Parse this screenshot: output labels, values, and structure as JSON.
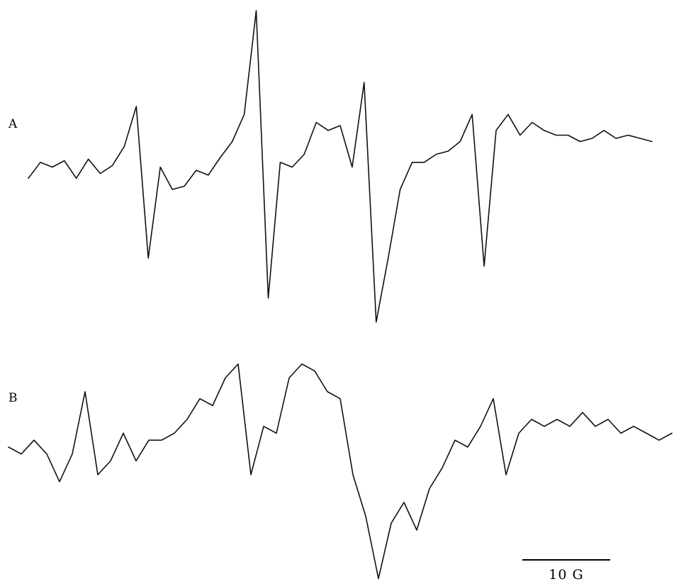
{
  "chart_data": [
    {
      "type": "line",
      "label": "A",
      "x_unit": "G",
      "xlim": [
        -52,
        52
      ],
      "ylim": [
        -1,
        1
      ],
      "series": [
        {
          "x": [
            -52,
            -50,
            -48,
            -46,
            -44,
            -42,
            -40,
            -38,
            -36,
            -34,
            -32,
            -30,
            -28,
            -26,
            -24,
            -22,
            -20,
            -18,
            -16,
            -14,
            -12,
            -10,
            -8,
            -6,
            -4,
            -2,
            0,
            2,
            4,
            6,
            8,
            10,
            12,
            14,
            16,
            18,
            20,
            22,
            24,
            26,
            28,
            30,
            32,
            34,
            36,
            38,
            40,
            42,
            44,
            46,
            48,
            50,
            52
          ],
          "y": [
            -0.05,
            0.05,
            0.02,
            0.06,
            -0.05,
            0.07,
            -0.02,
            0.03,
            0.15,
            0.4,
            -0.55,
            0.02,
            -0.12,
            -0.1,
            0.0,
            -0.03,
            0.08,
            0.18,
            0.35,
            1.0,
            -0.8,
            0.05,
            0.02,
            0.1,
            0.3,
            0.25,
            0.28,
            0.02,
            0.55,
            -0.95,
            -0.55,
            -0.12,
            0.05,
            0.05,
            0.1,
            0.12,
            0.18,
            0.35,
            -0.6,
            0.25,
            0.35,
            0.22,
            0.3,
            0.25,
            0.22,
            0.22,
            0.18,
            0.2,
            0.25,
            0.2,
            0.22,
            0.2,
            0.18
          ]
        }
      ]
    },
    {
      "type": "line",
      "label": "B",
      "x_unit": "G",
      "xlim": [
        -52,
        52
      ],
      "ylim": [
        -1,
        1
      ],
      "series": [
        {
          "x": [
            -52,
            -50,
            -48,
            -46,
            -44,
            -42,
            -40,
            -38,
            -36,
            -34,
            -32,
            -30,
            -28,
            -26,
            -24,
            -22,
            -20,
            -18,
            -16,
            -14,
            -12,
            -10,
            -8,
            -6,
            -4,
            -2,
            0,
            2,
            4,
            6,
            8,
            10,
            12,
            14,
            16,
            18,
            20,
            22,
            24,
            26,
            28,
            30,
            32,
            34,
            36,
            38,
            40,
            42,
            44,
            46,
            48,
            50,
            52
          ],
          "y": [
            0.0,
            -0.05,
            0.05,
            -0.05,
            -0.25,
            -0.05,
            0.4,
            -0.2,
            -0.1,
            0.1,
            -0.1,
            0.05,
            0.05,
            0.1,
            0.2,
            0.35,
            0.3,
            0.5,
            0.6,
            -0.2,
            0.15,
            0.1,
            0.5,
            0.6,
            0.55,
            0.4,
            0.35,
            -0.2,
            -0.5,
            -0.95,
            -0.55,
            -0.4,
            -0.6,
            -0.3,
            -0.15,
            0.05,
            0.0,
            0.15,
            0.35,
            -0.2,
            0.1,
            0.2,
            0.15,
            0.2,
            0.15,
            0.25,
            0.15,
            0.2,
            0.1,
            0.15,
            0.1,
            0.05,
            0.1
          ]
        }
      ]
    }
  ],
  "scale_bar": {
    "value": 10,
    "unit": "G",
    "label": "10 G"
  }
}
